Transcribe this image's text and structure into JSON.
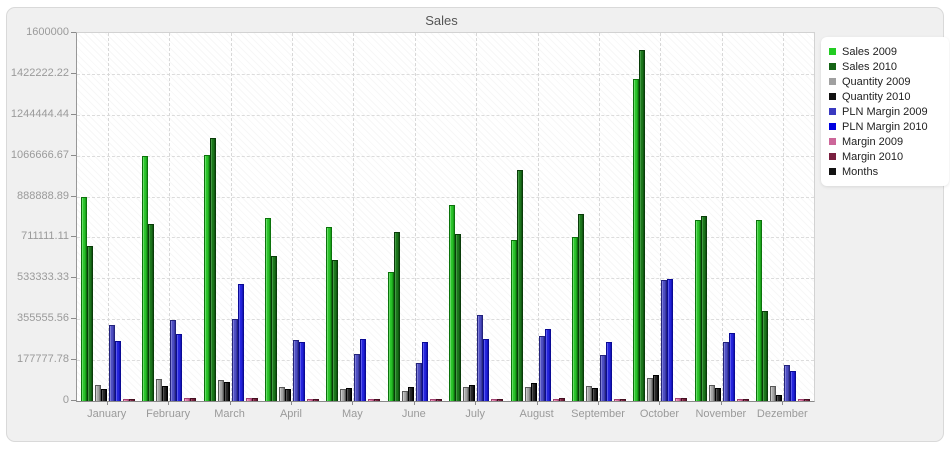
{
  "window": {
    "title": "Sales"
  },
  "chart_data": {
    "type": "bar",
    "title": "Sales",
    "categories": [
      "January",
      "February",
      "March",
      "April",
      "May",
      "June",
      "July",
      "August",
      "September",
      "October",
      "November",
      "Dezember"
    ],
    "series": [
      {
        "name": "Sales 2009",
        "color": "#22cc22",
        "values": [
          885000,
          1065000,
          1070000,
          795000,
          755000,
          560000,
          850000,
          700000,
          715000,
          1400000,
          785000,
          785000
        ]
      },
      {
        "name": "Sales 2010",
        "color": "#156415",
        "values": [
          675000,
          770000,
          1145000,
          630000,
          615000,
          735000,
          725000,
          1005000,
          815000,
          1525000,
          805000,
          390000
        ]
      },
      {
        "name": "Quantity 2009",
        "color": "#a0a0a0",
        "values": [
          70000,
          95000,
          90000,
          62000,
          50000,
          45000,
          62000,
          60000,
          65000,
          100000,
          68000,
          65000
        ]
      },
      {
        "name": "Quantity 2010",
        "color": "#111111",
        "values": [
          52000,
          65000,
          83000,
          50000,
          58000,
          60000,
          68000,
          78000,
          57000,
          115000,
          58000,
          26000
        ]
      },
      {
        "name": "PLN Margin 2009",
        "color": "#3939c0",
        "values": [
          330000,
          352000,
          357000,
          265000,
          204000,
          165000,
          375000,
          283000,
          200000,
          525000,
          257000,
          157000
        ]
      },
      {
        "name": "PLN Margin 2010",
        "color": "#0000e0",
        "values": [
          261000,
          292000,
          510000,
          258000,
          270000,
          255000,
          270000,
          313000,
          257000,
          530000,
          295000,
          130000
        ]
      },
      {
        "name": "Margin 2009",
        "color": "#cc6699",
        "values": [
          10000,
          12000,
          11000,
          9000,
          8000,
          9000,
          10000,
          10000,
          9000,
          13000,
          9000,
          8000
        ]
      },
      {
        "name": "Margin 2010",
        "color": "#7a2040",
        "values": [
          9000,
          11000,
          12000,
          8000,
          8000,
          9000,
          9000,
          11000,
          8000,
          14000,
          8000,
          7000
        ]
      },
      {
        "name": "Months",
        "color": "#111111",
        "values": null
      }
    ],
    "ylim": [
      0,
      1600000
    ],
    "ytick_labels": [
      "1600000",
      "1422222.22",
      "1244444.44",
      "1066666.67",
      "888888.89",
      "711111.11",
      "533333.33",
      "355555.56",
      "177777.78",
      "0"
    ],
    "legend_position": "right",
    "grid": "dashed",
    "plot_background": "white with diagonal hatch"
  },
  "colors": {
    "panel_bg": "#f0f0f0",
    "plot_bg": "#ffffff",
    "axis": "#8a8a8a",
    "grid_line": "#dcdcdc",
    "tick_label": "#9a9a9a",
    "title_text": "#555555",
    "legend_bg": "#ffffff",
    "legend_text": "#222222"
  }
}
